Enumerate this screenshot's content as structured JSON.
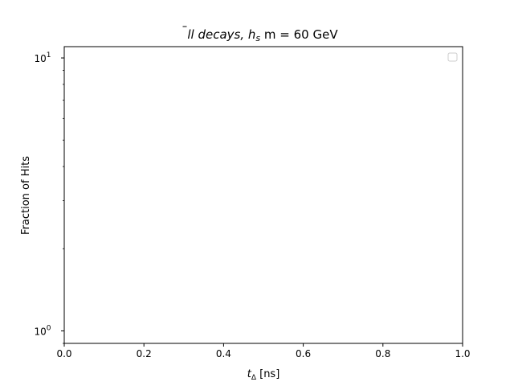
{
  "chart_data": {
    "type": "line",
    "title": {
      "bar_var": "l",
      "rest1": "l decays, ",
      "h_main": "h",
      "h_sub": "s",
      "rest2": " m = 60 GeV"
    },
    "xlabel": {
      "main": "t",
      "sub": "Δ",
      "rest": " [ns]"
    },
    "ylabel": "Fraction of Hits",
    "xlim": [
      0.0,
      1.0
    ],
    "ylim": [
      0.9,
      11.0
    ],
    "yscale": "log",
    "xticks": [
      {
        "value": 0.0,
        "label": "0.0"
      },
      {
        "value": 0.2,
        "label": "0.2"
      },
      {
        "value": 0.4,
        "label": "0.4"
      },
      {
        "value": 0.6,
        "label": "0.6"
      },
      {
        "value": 0.8,
        "label": "0.8"
      },
      {
        "value": 1.0,
        "label": "1.0"
      }
    ],
    "yticks": [
      {
        "value": 1,
        "base": "10",
        "exp": "0"
      },
      {
        "value": 10,
        "base": "10",
        "exp": "1"
      }
    ],
    "series": [],
    "legend": {
      "position": "top-right",
      "entries": []
    },
    "grid": false
  }
}
